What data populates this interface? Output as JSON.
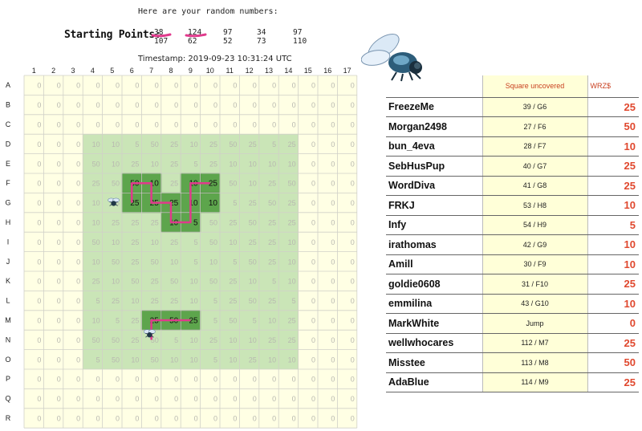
{
  "header": {
    "caption": "Here are your random numbers:",
    "starting_points_label": "Starting Points:",
    "random_numbers": {
      "row1": [
        "38",
        "124",
        "97",
        "34",
        "97"
      ],
      "row2": [
        "107",
        "62",
        "52",
        "73",
        "110"
      ]
    },
    "timestamp": "Timestamp: 2019-09-23 10:31:24 UTC"
  },
  "board": {
    "columns": [
      "1",
      "2",
      "3",
      "4",
      "5",
      "6",
      "7",
      "8",
      "9",
      "10",
      "11",
      "12",
      "13",
      "14",
      "15",
      "16",
      "17"
    ],
    "rows": [
      "A",
      "B",
      "C",
      "D",
      "E",
      "F",
      "G",
      "H",
      "I",
      "J",
      "K",
      "L",
      "M",
      "N",
      "O",
      "P",
      "Q",
      "R"
    ],
    "cells": [
      [
        "0",
        "0",
        "0",
        "0",
        "0",
        "0",
        "0",
        "0",
        "0",
        "0",
        "0",
        "0",
        "0",
        "0",
        "0",
        "0",
        "0"
      ],
      [
        "0",
        "0",
        "0",
        "0",
        "0",
        "0",
        "0",
        "0",
        "0",
        "0",
        "0",
        "0",
        "0",
        "0",
        "0",
        "0",
        "0"
      ],
      [
        "0",
        "0",
        "0",
        "0",
        "0",
        "0",
        "0",
        "0",
        "0",
        "0",
        "0",
        "0",
        "0",
        "0",
        "0",
        "0",
        "0"
      ],
      [
        "0",
        "0",
        "0",
        "10",
        "10",
        "5",
        "50",
        "25",
        "10",
        "25",
        "50",
        "25",
        "5",
        "25",
        "0",
        "0",
        "0"
      ],
      [
        "0",
        "0",
        "0",
        "50",
        "10",
        "25",
        "10",
        "25",
        "5",
        "25",
        "10",
        "10",
        "10",
        "10",
        "0",
        "0",
        "0"
      ],
      [
        "0",
        "0",
        "0",
        "25",
        "50",
        "50",
        "10",
        "25",
        "10",
        "25",
        "50",
        "10",
        "25",
        "50",
        "0",
        "0",
        "0"
      ],
      [
        "0",
        "0",
        "0",
        "10",
        "5",
        "25",
        "25",
        "25",
        "10",
        "10",
        "5",
        "25",
        "50",
        "25",
        "0",
        "0",
        "0"
      ],
      [
        "0",
        "0",
        "0",
        "10",
        "25",
        "25",
        "25",
        "10",
        "5",
        "50",
        "25",
        "50",
        "25",
        "25",
        "0",
        "0",
        "0"
      ],
      [
        "0",
        "0",
        "0",
        "50",
        "10",
        "25",
        "10",
        "25",
        "5",
        "50",
        "10",
        "25",
        "25",
        "10",
        "0",
        "0",
        "0"
      ],
      [
        "0",
        "0",
        "0",
        "10",
        "50",
        "25",
        "50",
        "10",
        "5",
        "10",
        "5",
        "50",
        "25",
        "10",
        "0",
        "0",
        "0"
      ],
      [
        "0",
        "0",
        "0",
        "25",
        "10",
        "50",
        "25",
        "50",
        "10",
        "50",
        "25",
        "10",
        "5",
        "10",
        "0",
        "0",
        "0"
      ],
      [
        "0",
        "0",
        "0",
        "5",
        "25",
        "10",
        "25",
        "25",
        "10",
        "5",
        "25",
        "50",
        "25",
        "5",
        "0",
        "0",
        "0"
      ],
      [
        "0",
        "0",
        "0",
        "10",
        "5",
        "25",
        "25",
        "50",
        "25",
        "5",
        "50",
        "5",
        "10",
        "25",
        "0",
        "0",
        "0"
      ],
      [
        "0",
        "0",
        "0",
        "50",
        "50",
        "25",
        "50",
        "5",
        "10",
        "25",
        "10",
        "10",
        "25",
        "25",
        "0",
        "0",
        "0"
      ],
      [
        "0",
        "0",
        "0",
        "5",
        "50",
        "10",
        "50",
        "10",
        "10",
        "5",
        "10",
        "25",
        "10",
        "10",
        "0",
        "0",
        "0"
      ],
      [
        "0",
        "0",
        "0",
        "0",
        "0",
        "0",
        "0",
        "0",
        "0",
        "0",
        "0",
        "0",
        "0",
        "0",
        "0",
        "0",
        "0"
      ],
      [
        "0",
        "0",
        "0",
        "0",
        "0",
        "0",
        "0",
        "0",
        "0",
        "0",
        "0",
        "0",
        "0",
        "0",
        "0",
        "0",
        "0"
      ],
      [
        "0",
        "0",
        "0",
        "0",
        "0",
        "0",
        "0",
        "0",
        "0",
        "0",
        "0",
        "0",
        "0",
        "0",
        "0",
        "0",
        "0"
      ]
    ],
    "uncovered": [
      "G6",
      "F7",
      "F6",
      "G7",
      "G8",
      "H8",
      "H9",
      "G9",
      "F9",
      "F10",
      "G10",
      "M7",
      "M8",
      "M9"
    ],
    "colors": {
      "cell_bg": "#ffffe4",
      "zone": "#a6d49a",
      "uncovered": "#4a9a3a",
      "path": "#e03a8c",
      "grid": "#d0d0c8"
    }
  },
  "leaderboard": {
    "headers": [
      "",
      "Square uncovered",
      "WRZ$"
    ],
    "rows": [
      {
        "name": "FreezeMe",
        "square": "39 / G6",
        "wrz": "25"
      },
      {
        "name": "Morgan2498",
        "square": "27 / F6",
        "wrz": "50"
      },
      {
        "name": "bun_4eva",
        "square": "28 / F7",
        "wrz": "10"
      },
      {
        "name": "SebHusPup",
        "square": "40 / G7",
        "wrz": "25"
      },
      {
        "name": "WordDiva",
        "square": "41 / G8",
        "wrz": "25"
      },
      {
        "name": "FRKJ",
        "square": "53 / H8",
        "wrz": "10"
      },
      {
        "name": "Infy",
        "square": "54 / H9",
        "wrz": "5"
      },
      {
        "name": "irathomas",
        "square": "42 / G9",
        "wrz": "10"
      },
      {
        "name": "Amill",
        "square": "30 / F9",
        "wrz": "10"
      },
      {
        "name": "goldie0608",
        "square": "31 / F10",
        "wrz": "25"
      },
      {
        "name": "emmilina",
        "square": "43 / G10",
        "wrz": "10"
      },
      {
        "name": "MarkWhite",
        "square": "Jump",
        "wrz": "0"
      },
      {
        "name": "wellwhocares",
        "square": "112 / M7",
        "wrz": "25"
      },
      {
        "name": "Misstee",
        "square": "113 / M8",
        "wrz": "50"
      },
      {
        "name": "AdaBlue",
        "square": "114 / M9",
        "wrz": "25"
      }
    ]
  },
  "icons": {
    "big_fly": "fly-icon",
    "marker_fly": "small-fly-icon"
  }
}
